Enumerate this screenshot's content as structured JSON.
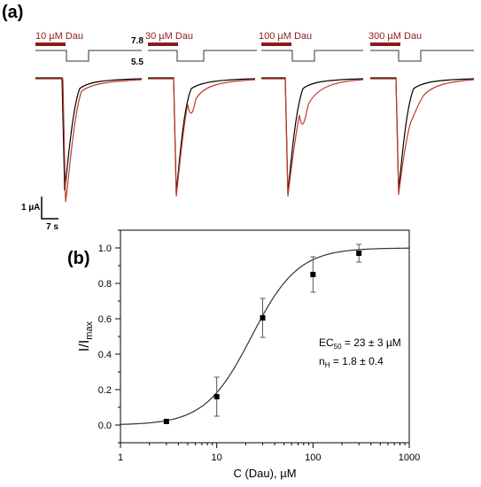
{
  "panel_a": {
    "label": "(a)",
    "conditions": [
      "10 µM Dau",
      "30 µM Dau",
      "100 µM Dau",
      "300 µM Dau"
    ],
    "ph_high": "7.8",
    "ph_low": "5.5",
    "scale_current": "1 µA",
    "scale_time": "7 s",
    "colors": {
      "drug_bar": "#8b1a1a",
      "control_trace": "#000000",
      "drug_trace": "#c0392b",
      "ph_step": "#333333"
    }
  },
  "panel_b": {
    "label": "(b)",
    "annotation_ec50_prefix": "EC",
    "annotation_ec50_sub": "50",
    "annotation_ec50_value": " = 23 ± 3 µM",
    "annotation_nh_prefix": "n",
    "annotation_nh_sub": "H",
    "annotation_nh_value": " = 1.8 ± 0.4"
  },
  "chart_data": [
    {
      "type": "scatter",
      "xlabel": "C (Dau), µM",
      "ylabel_main": "I/I",
      "ylabel_sub": "max",
      "xscale": "log",
      "xlim": [
        1,
        1000
      ],
      "ylim": [
        -0.1,
        1.1
      ],
      "x_ticks": [
        "1",
        "10",
        "100",
        "1000"
      ],
      "y_ticks": [
        "0.0",
        "0.2",
        "0.4",
        "0.6",
        "0.8",
        "1.0"
      ],
      "points": [
        {
          "x": 3,
          "y": 0.02,
          "err": 0.01
        },
        {
          "x": 10,
          "y": 0.16,
          "err": 0.11
        },
        {
          "x": 30,
          "y": 0.605,
          "err": 0.11
        },
        {
          "x": 100,
          "y": 0.85,
          "err": 0.1
        },
        {
          "x": 300,
          "y": 0.97,
          "err": 0.05
        }
      ],
      "fit": {
        "model": "hill",
        "ec50": 23,
        "nh": 1.8,
        "max": 1.0
      },
      "grid": false
    }
  ]
}
